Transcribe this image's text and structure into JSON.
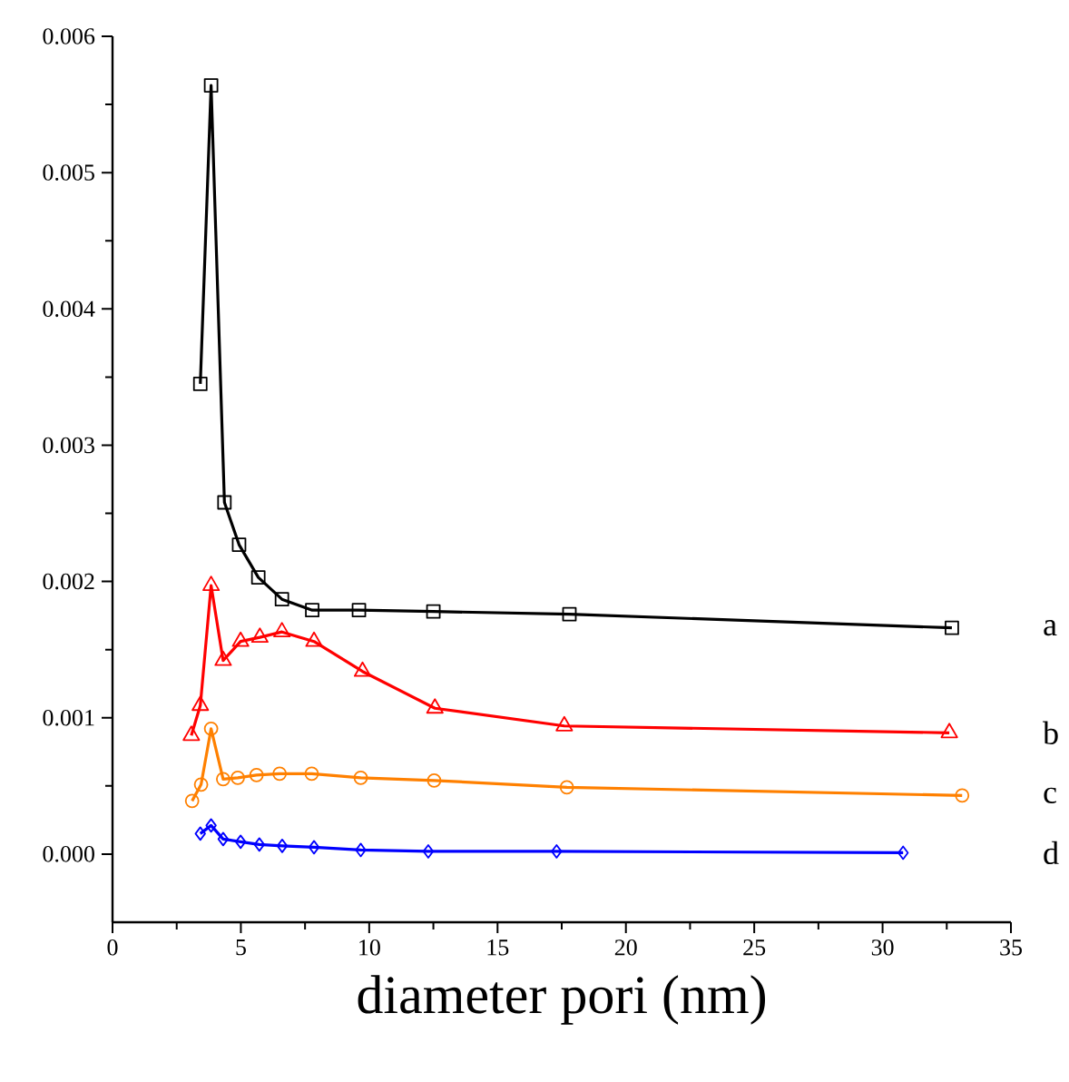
{
  "chart_data": {
    "type": "line",
    "xlabel": "diameter pori (nm)",
    "xlim": [
      0,
      35
    ],
    "ylim": [
      -0.0005,
      0.006
    ],
    "xticks": [
      0,
      5,
      10,
      15,
      20,
      25,
      30,
      35
    ],
    "yticks": [
      {
        "value": 0,
        "label": "0.000"
      },
      {
        "value": 0.001,
        "label": "0.001"
      },
      {
        "value": 0.002,
        "label": "0.002"
      },
      {
        "value": 0.003,
        "label": "0.003"
      },
      {
        "value": 0.004,
        "label": "0.004"
      },
      {
        "value": 0.005,
        "label": "0.005"
      },
      {
        "value": 0.006,
        "label": "0.006"
      }
    ],
    "grid": false,
    "legend": false,
    "line_style": "solid",
    "series": [
      {
        "name": "a",
        "color": "#000000",
        "marker": "square",
        "x": [
          3.42,
          3.84,
          4.36,
          4.93,
          5.68,
          6.6,
          7.78,
          9.6,
          12.5,
          17.8,
          32.7
        ],
        "values": [
          0.00345,
          0.00564,
          0.00258,
          0.00227,
          0.00203,
          0.00187,
          0.00179,
          0.00179,
          0.00178,
          0.00176,
          0.00166
        ]
      },
      {
        "name": "b",
        "color": "#ff0000",
        "marker": "triangle",
        "x": [
          3.07,
          3.42,
          3.84,
          4.31,
          4.99,
          5.74,
          6.6,
          7.85,
          9.74,
          12.56,
          17.6,
          32.6
        ],
        "values": [
          0.00087,
          0.00109,
          0.00197,
          0.00142,
          0.00156,
          0.00159,
          0.00163,
          0.00156,
          0.00134,
          0.00107,
          0.00094,
          0.00089
        ]
      },
      {
        "name": "c",
        "color": "#ff8000",
        "marker": "circle",
        "x": [
          3.1,
          3.45,
          3.84,
          4.31,
          4.88,
          5.61,
          6.51,
          7.76,
          9.67,
          12.53,
          17.7,
          33.1
        ],
        "values": [
          0.00039,
          0.00051,
          0.00092,
          0.00055,
          0.00056,
          0.00058,
          0.00059,
          0.00059,
          0.00056,
          0.00054,
          0.00049,
          0.00043
        ]
      },
      {
        "name": "d",
        "color": "#0000ff",
        "marker": "diamond",
        "x": [
          3.42,
          3.84,
          4.31,
          4.99,
          5.72,
          6.61,
          7.85,
          9.67,
          12.3,
          17.3,
          30.8
        ],
        "values": [
          0.00015,
          0.00021,
          0.00011,
          9e-05,
          7e-05,
          6e-05,
          5e-05,
          3e-05,
          2e-05,
          2e-05,
          1e-05
        ]
      }
    ]
  }
}
